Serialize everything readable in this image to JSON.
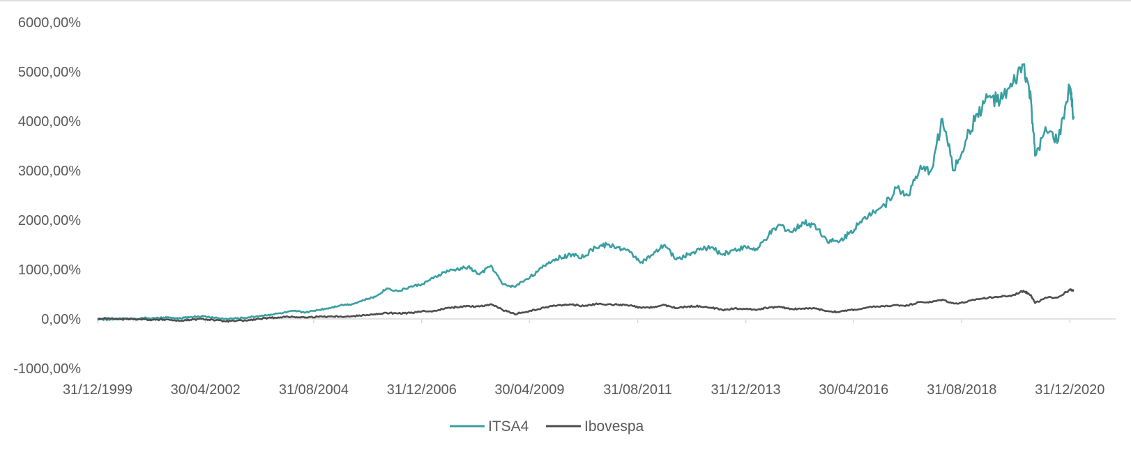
{
  "chart_data": {
    "type": "line",
    "title": "",
    "xlabel": "",
    "ylabel": "",
    "x_ticks": [
      "31/12/1999",
      "30/04/2002",
      "31/08/2004",
      "31/12/2006",
      "30/04/2009",
      "31/08/2011",
      "31/12/2013",
      "30/04/2016",
      "31/08/2018",
      "31/12/2020"
    ],
    "y_ticks": [
      "6000,00%",
      "5000,00%",
      "4000,00%",
      "3000,00%",
      "2000,00%",
      "1000,00%",
      "0,00%",
      "-1000,00%"
    ],
    "ylim": [
      -1000,
      6000
    ],
    "xlim": [
      "31/12/1999",
      "31/01/2021"
    ],
    "grid": false,
    "legend_position": "bottom",
    "series": [
      {
        "name": "ITSA4",
        "color": "#3a9ea1",
        "points": [
          [
            "31/12/1999",
            0
          ],
          [
            "31/03/2000",
            -20
          ],
          [
            "30/06/2000",
            10
          ],
          [
            "30/09/2000",
            0
          ],
          [
            "31/12/2000",
            20
          ],
          [
            "31/03/2001",
            10
          ],
          [
            "30/06/2001",
            30
          ],
          [
            "30/09/2001",
            5
          ],
          [
            "31/12/2001",
            40
          ],
          [
            "31/03/2002",
            55
          ],
          [
            "30/06/2002",
            30
          ],
          [
            "30/09/2002",
            0
          ],
          [
            "31/12/2002",
            10
          ],
          [
            "31/03/2003",
            30
          ],
          [
            "30/06/2003",
            60
          ],
          [
            "30/09/2003",
            90
          ],
          [
            "31/12/2003",
            120
          ],
          [
            "31/03/2004",
            160
          ],
          [
            "30/06/2004",
            130
          ],
          [
            "30/09/2004",
            180
          ],
          [
            "31/12/2004",
            220
          ],
          [
            "31/03/2005",
            280
          ],
          [
            "30/06/2005",
            300
          ],
          [
            "30/09/2005",
            380
          ],
          [
            "31/12/2005",
            450
          ],
          [
            "31/03/2006",
            620
          ],
          [
            "30/06/2006",
            560
          ],
          [
            "30/09/2006",
            650
          ],
          [
            "31/12/2006",
            700
          ],
          [
            "31/03/2007",
            820
          ],
          [
            "30/06/2007",
            950
          ],
          [
            "30/09/2007",
            1000
          ],
          [
            "31/12/2007",
            1050
          ],
          [
            "31/03/2008",
            900
          ],
          [
            "30/06/2008",
            1080
          ],
          [
            "30/09/2008",
            700
          ],
          [
            "31/12/2008",
            650
          ],
          [
            "31/03/2009",
            800
          ],
          [
            "30/06/2009",
            950
          ],
          [
            "30/09/2009",
            1150
          ],
          [
            "31/12/2009",
            1250
          ],
          [
            "31/03/2010",
            1300
          ],
          [
            "30/06/2010",
            1250
          ],
          [
            "30/09/2010",
            1450
          ],
          [
            "31/12/2010",
            1500
          ],
          [
            "31/03/2011",
            1450
          ],
          [
            "30/06/2011",
            1350
          ],
          [
            "30/09/2011",
            1150
          ],
          [
            "31/12/2011",
            1300
          ],
          [
            "31/03/2012",
            1500
          ],
          [
            "30/06/2012",
            1200
          ],
          [
            "30/09/2012",
            1300
          ],
          [
            "31/12/2012",
            1400
          ],
          [
            "31/03/2013",
            1450
          ],
          [
            "30/06/2013",
            1300
          ],
          [
            "30/09/2013",
            1400
          ],
          [
            "31/12/2013",
            1450
          ],
          [
            "31/03/2014",
            1400
          ],
          [
            "30/06/2014",
            1700
          ],
          [
            "30/09/2014",
            1900
          ],
          [
            "31/12/2014",
            1750
          ],
          [
            "31/03/2015",
            1950
          ],
          [
            "30/06/2015",
            1900
          ],
          [
            "30/09/2015",
            1600
          ],
          [
            "31/12/2015",
            1550
          ],
          [
            "31/03/2016",
            1750
          ],
          [
            "30/06/2016",
            1950
          ],
          [
            "30/09/2016",
            2200
          ],
          [
            "31/12/2016",
            2300
          ],
          [
            "31/03/2017",
            2650
          ],
          [
            "30/06/2017",
            2500
          ],
          [
            "30/09/2017",
            3000
          ],
          [
            "31/12/2017",
            3000
          ],
          [
            "31/03/2018",
            4050
          ],
          [
            "30/06/2018",
            3000
          ],
          [
            "30/09/2018",
            3600
          ],
          [
            "31/12/2018",
            4150
          ],
          [
            "31/03/2019",
            4500
          ],
          [
            "30/06/2019",
            4400
          ],
          [
            "30/09/2019",
            4700
          ],
          [
            "31/12/2019",
            5150
          ],
          [
            "29/02/2020",
            4400
          ],
          [
            "31/03/2020",
            3300
          ],
          [
            "30/06/2020",
            3800
          ],
          [
            "30/09/2020",
            3600
          ],
          [
            "31/12/2020",
            4700
          ],
          [
            "31/01/2021",
            4050
          ]
        ]
      },
      {
        "name": "Ibovespa",
        "color": "#4d4d4d",
        "points": [
          [
            "31/12/1999",
            0
          ],
          [
            "31/03/2000",
            10
          ],
          [
            "30/06/2000",
            -10
          ],
          [
            "30/09/2000",
            0
          ],
          [
            "31/12/2000",
            -10
          ],
          [
            "31/03/2001",
            -20
          ],
          [
            "30/06/2001",
            -10
          ],
          [
            "30/09/2001",
            -40
          ],
          [
            "31/12/2001",
            -20
          ],
          [
            "31/03/2002",
            0
          ],
          [
            "30/06/2002",
            -20
          ],
          [
            "30/09/2002",
            -50
          ],
          [
            "31/12/2002",
            -40
          ],
          [
            "31/03/2003",
            -30
          ],
          [
            "30/06/2003",
            0
          ],
          [
            "30/09/2003",
            20
          ],
          [
            "31/12/2003",
            40
          ],
          [
            "31/03/2004",
            40
          ],
          [
            "30/06/2004",
            30
          ],
          [
            "30/09/2004",
            45
          ],
          [
            "31/12/2004",
            50
          ],
          [
            "31/03/2005",
            50
          ],
          [
            "30/06/2005",
            50
          ],
          [
            "30/09/2005",
            80
          ],
          [
            "31/12/2005",
            90
          ],
          [
            "31/03/2006",
            120
          ],
          [
            "30/06/2006",
            110
          ],
          [
            "30/09/2006",
            120
          ],
          [
            "31/12/2006",
            150
          ],
          [
            "31/03/2007",
            160
          ],
          [
            "30/06/2007",
            210
          ],
          [
            "30/09/2007",
            240
          ],
          [
            "31/12/2007",
            260
          ],
          [
            "31/03/2008",
            250
          ],
          [
            "30/06/2008",
            300
          ],
          [
            "30/09/2008",
            180
          ],
          [
            "31/12/2008",
            100
          ],
          [
            "31/03/2009",
            140
          ],
          [
            "30/06/2009",
            190
          ],
          [
            "30/09/2009",
            250
          ],
          [
            "31/12/2009",
            280
          ],
          [
            "31/03/2010",
            290
          ],
          [
            "30/06/2010",
            260
          ],
          [
            "30/09/2010",
            300
          ],
          [
            "31/12/2010",
            290
          ],
          [
            "31/03/2011",
            290
          ],
          [
            "30/06/2011",
            270
          ],
          [
            "30/09/2011",
            220
          ],
          [
            "31/12/2011",
            240
          ],
          [
            "31/03/2012",
            280
          ],
          [
            "30/06/2012",
            220
          ],
          [
            "30/09/2012",
            250
          ],
          [
            "31/12/2012",
            260
          ],
          [
            "31/03/2013",
            230
          ],
          [
            "30/06/2013",
            180
          ],
          [
            "30/09/2013",
            210
          ],
          [
            "31/12/2013",
            200
          ],
          [
            "31/03/2014",
            190
          ],
          [
            "30/06/2014",
            230
          ],
          [
            "30/09/2014",
            240
          ],
          [
            "31/12/2014",
            200
          ],
          [
            "31/03/2015",
            210
          ],
          [
            "30/06/2015",
            210
          ],
          [
            "30/09/2015",
            160
          ],
          [
            "31/12/2015",
            140
          ],
          [
            "31/03/2016",
            180
          ],
          [
            "30/06/2016",
            200
          ],
          [
            "30/09/2016",
            250
          ],
          [
            "31/12/2016",
            250
          ],
          [
            "31/03/2017",
            280
          ],
          [
            "30/06/2017",
            270
          ],
          [
            "30/09/2017",
            340
          ],
          [
            "31/12/2017",
            340
          ],
          [
            "31/03/2018",
            390
          ],
          [
            "30/06/2018",
            310
          ],
          [
            "30/09/2018",
            340
          ],
          [
            "31/12/2018",
            400
          ],
          [
            "31/03/2019",
            430
          ],
          [
            "30/06/2019",
            450
          ],
          [
            "30/09/2019",
            470
          ],
          [
            "31/12/2019",
            570
          ],
          [
            "29/02/2020",
            480
          ],
          [
            "31/03/2020",
            320
          ],
          [
            "30/06/2020",
            430
          ],
          [
            "30/09/2020",
            440
          ],
          [
            "31/12/2020",
            590
          ],
          [
            "31/01/2021",
            560
          ]
        ]
      }
    ]
  }
}
